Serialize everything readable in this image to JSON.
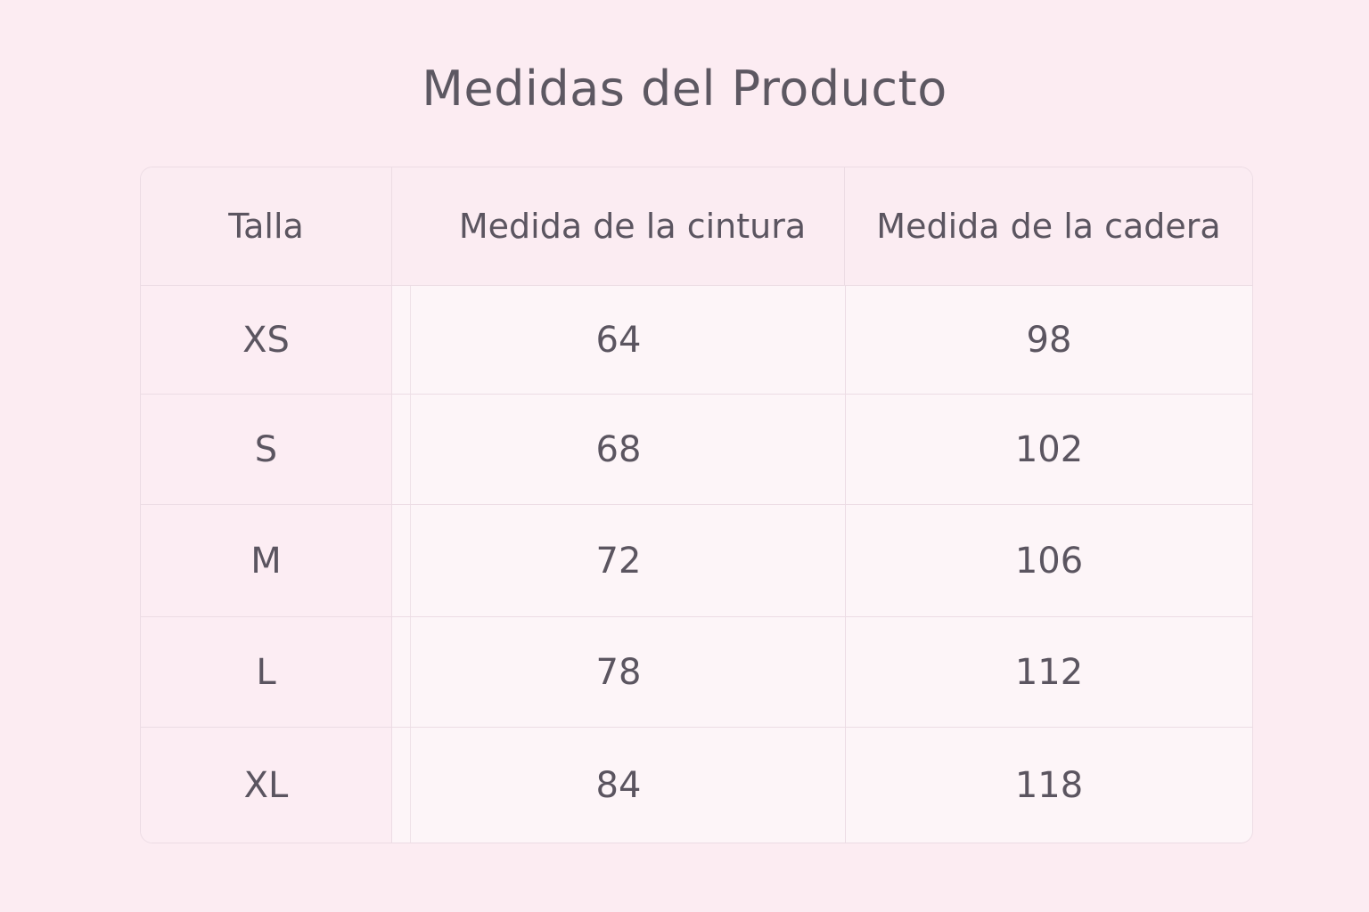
{
  "title": "Medidas del Producto",
  "table": {
    "headers": [
      "Talla",
      "Medida de la cintura",
      "Medida de la cadera"
    ],
    "rows": [
      [
        "XS",
        "64",
        "98"
      ],
      [
        "S",
        "68",
        "102"
      ],
      [
        "M",
        "72",
        "106"
      ],
      [
        "L",
        "78",
        "112"
      ],
      [
        "XL",
        "84",
        "118"
      ]
    ]
  }
}
